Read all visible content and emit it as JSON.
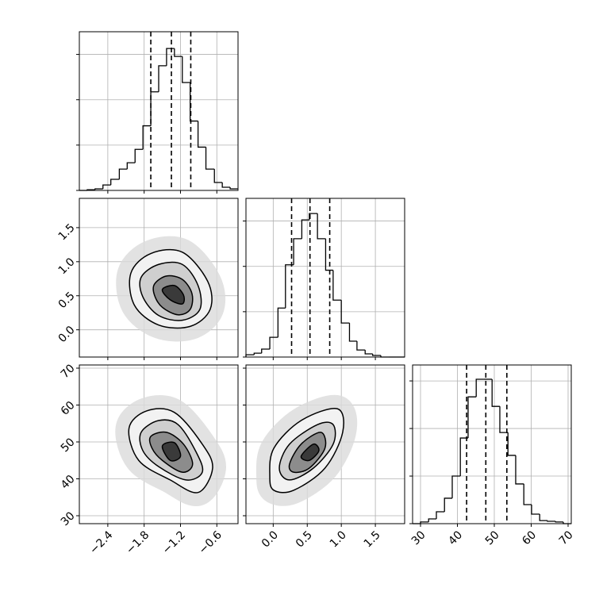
{
  "chart_data": {
    "type": "corner",
    "color": "#000000",
    "grid": true,
    "parameters": [
      {
        "xlim": [
          -2.87,
          -0.25
        ],
        "ticks": [
          {
            "value": -2.4,
            "label": "−2.4"
          },
          {
            "value": -1.8,
            "label": "−1.8"
          },
          {
            "value": -1.2,
            "label": "−1.2"
          },
          {
            "value": -0.6,
            "label": "−0.6"
          }
        ],
        "bins": [
          -2.87,
          -2.74,
          -2.61,
          -2.48,
          -2.35,
          -2.21,
          -2.08,
          -1.95,
          -1.82,
          -1.69,
          -1.56,
          -1.43,
          -1.3,
          -1.17,
          -1.04,
          -0.91,
          -0.78,
          -0.64,
          -0.51,
          -0.38,
          -0.25
        ],
        "counts": [
          0,
          3,
          7,
          24,
          49,
          94,
          122,
          181,
          285,
          435,
          550,
          626,
          591,
          476,
          306,
          191,
          94,
          35,
          14,
          7
        ],
        "ylim": [
          0,
          700
        ],
        "yticks": [
          0,
          200,
          400,
          600
        ],
        "quantiles": [
          -1.69,
          -1.35,
          -1.03
        ]
      },
      {
        "xlim": [
          -0.4,
          1.93
        ],
        "ticks": [
          {
            "value": 0,
            "label": "0.0"
          },
          {
            "value": 0.5,
            "label": "0.5"
          },
          {
            "value": 1,
            "label": "1.0"
          },
          {
            "value": 1.5,
            "label": "1.5"
          }
        ],
        "bins": [
          -0.4,
          -0.28,
          -0.17,
          -0.05,
          0.07,
          0.18,
          0.3,
          0.42,
          0.53,
          0.65,
          0.77,
          0.88,
          1.0,
          1.12,
          1.23,
          1.35,
          1.46,
          1.58,
          1.7,
          1.81,
          1.93
        ],
        "counts": [
          10,
          17,
          35,
          87,
          216,
          407,
          522,
          605,
          633,
          522,
          383,
          251,
          150,
          70,
          31,
          14,
          7,
          0,
          0,
          0
        ],
        "ylim": [
          0,
          700
        ],
        "yticks": [
          0,
          200,
          400,
          600
        ],
        "quantiles": [
          0.27,
          0.54,
          0.83
        ]
      },
      {
        "xlim": [
          27.85,
          70.86
        ],
        "ticks": [
          30,
          40,
          50,
          60,
          70
        ],
        "bins": [
          27.85,
          30.0,
          32.2,
          34.3,
          36.5,
          38.6,
          40.8,
          42.9,
          45.1,
          47.2,
          49.4,
          51.5,
          53.7,
          55.8,
          58.0,
          60.1,
          62.3,
          64.4,
          66.6,
          68.7,
          70.86
        ],
        "counts": [
          0,
          7,
          20,
          50,
          107,
          200,
          360,
          533,
          607,
          607,
          493,
          383,
          287,
          167,
          80,
          40,
          13,
          10,
          7,
          0
        ],
        "ylim": [
          0,
          667
        ],
        "yticks": [
          0,
          200,
          400,
          600
        ],
        "quantiles": [
          42.5,
          47.7,
          53.4
        ]
      }
    ],
    "panels": [
      {
        "x": 0,
        "y": 1,
        "contours": [
          [
            [
              -2.02,
              0.83
            ],
            [
              -1.69,
              1.12
            ],
            [
              -1.17,
              1.14
            ],
            [
              -0.75,
              0.71
            ],
            [
              -0.71,
              0.3
            ],
            [
              -1.04,
              0.05
            ],
            [
              -1.56,
              0.07
            ],
            [
              -1.96,
              0.36
            ]
          ],
          [
            [
              -1.85,
              0.77
            ],
            [
              -1.56,
              0.96
            ],
            [
              -1.17,
              0.96
            ],
            [
              -0.91,
              0.65
            ],
            [
              -0.88,
              0.3
            ],
            [
              -1.17,
              0.14
            ],
            [
              -1.56,
              0.21
            ],
            [
              -1.82,
              0.48
            ]
          ],
          [
            [
              -1.63,
              0.67
            ],
            [
              -1.43,
              0.79
            ],
            [
              -1.17,
              0.74
            ],
            [
              -1.01,
              0.53
            ],
            [
              -1.04,
              0.3
            ],
            [
              -1.24,
              0.22
            ],
            [
              -1.5,
              0.33
            ],
            [
              -1.63,
              0.51
            ]
          ],
          [
            [
              -1.5,
              0.59
            ],
            [
              -1.3,
              0.65
            ],
            [
              -1.15,
              0.51
            ],
            [
              -1.17,
              0.38
            ],
            [
              -1.37,
              0.44
            ]
          ]
        ]
      },
      {
        "x": 0,
        "y": 2,
        "contours": [
          [
            [
              -2.05,
              53.7
            ],
            [
              -1.76,
              58.4
            ],
            [
              -1.3,
              58.0
            ],
            [
              -0.84,
              49.4
            ],
            [
              -0.67,
              42.9
            ],
            [
              -0.91,
              36.3
            ],
            [
              -1.37,
              39.7
            ],
            [
              -1.89,
              45.0
            ]
          ],
          [
            [
              -1.85,
              52.6
            ],
            [
              -1.56,
              55.8
            ],
            [
              -1.24,
              54.7
            ],
            [
              -0.94,
              47.2
            ],
            [
              -0.84,
              41.8
            ],
            [
              -1.11,
              39.7
            ],
            [
              -1.56,
              43.3
            ],
            [
              -1.82,
              47.6
            ]
          ],
          [
            [
              -1.69,
              51.5
            ],
            [
              -1.43,
              52.6
            ],
            [
              -1.15,
              49.4
            ],
            [
              -1.0,
              44.0
            ],
            [
              -1.17,
              41.8
            ],
            [
              -1.5,
              45.0
            ],
            [
              -1.67,
              48.3
            ]
          ],
          [
            [
              -1.5,
              48.9
            ],
            [
              -1.3,
              49.8
            ],
            [
              -1.2,
              46.1
            ],
            [
              -1.37,
              45.0
            ]
          ]
        ]
      },
      {
        "x": 1,
        "y": 2,
        "contours": [
          [
            [
              -0.05,
              40.7
            ],
            [
              0.01,
              48.3
            ],
            [
              0.41,
              55.8
            ],
            [
              0.94,
              59.0
            ],
            [
              1.02,
              52.6
            ],
            [
              0.76,
              42.9
            ],
            [
              0.3,
              36.9
            ],
            [
              0.01,
              36.9
            ]
          ],
          [
            [
              0.09,
              42.9
            ],
            [
              0.24,
              49.4
            ],
            [
              0.65,
              54.7
            ],
            [
              0.88,
              54.7
            ],
            [
              0.88,
              49.4
            ],
            [
              0.59,
              42.9
            ],
            [
              0.24,
              39.7
            ]
          ],
          [
            [
              0.24,
              44.0
            ],
            [
              0.41,
              49.4
            ],
            [
              0.7,
              52.6
            ],
            [
              0.76,
              48.3
            ],
            [
              0.53,
              42.9
            ],
            [
              0.3,
              41.8
            ]
          ],
          [
            [
              0.41,
              46.1
            ],
            [
              0.59,
              49.4
            ],
            [
              0.67,
              47.6
            ],
            [
              0.53,
              45.0
            ]
          ]
        ]
      }
    ]
  }
}
